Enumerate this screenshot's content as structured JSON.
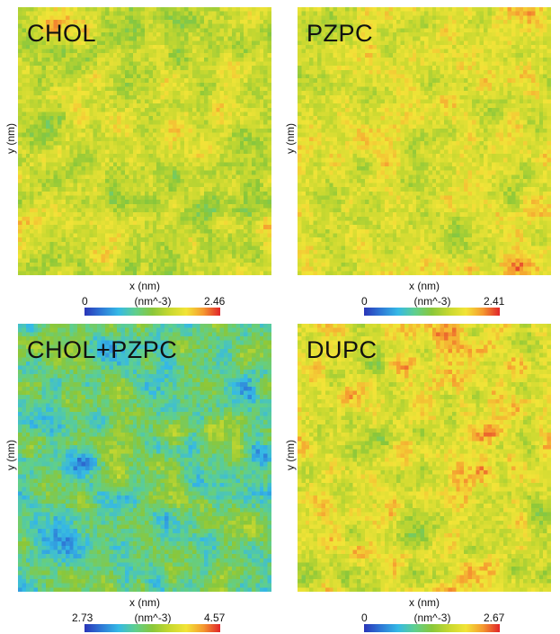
{
  "colormap": [
    "#2a35b8",
    "#2e79d6",
    "#35b9e6",
    "#5fcf8e",
    "#8ac73a",
    "#c7d830",
    "#f2e437",
    "#f59a30",
    "#e0242a"
  ],
  "chart_data": [
    {
      "type": "heatmap",
      "title": "CHOL",
      "xlabel": "x (nm)",
      "ylabel": "y (nm)",
      "colorbar": {
        "min": "0",
        "max": "2.46",
        "unit": "(nm^-3)",
        "range": [
          0,
          2.46
        ]
      },
      "typical_value": 1.6,
      "grid": "64x64"
    },
    {
      "type": "heatmap",
      "title": "PZPC",
      "xlabel": "x (nm)",
      "ylabel": "y (nm)",
      "colorbar": {
        "min": "0",
        "max": "2.41",
        "unit": "(nm^-3)",
        "range": [
          0,
          2.41
        ]
      },
      "typical_value": 1.65,
      "grid": "64x64"
    },
    {
      "type": "heatmap",
      "title": "CHOL+PZPC",
      "xlabel": "x (nm)",
      "ylabel": "y (nm)",
      "colorbar": {
        "min": "2.73",
        "max": "4.57",
        "unit": "(nm^-3)",
        "range": [
          2.73,
          4.57
        ]
      },
      "typical_value": 3.45,
      "grid": "64x64"
    },
    {
      "type": "heatmap",
      "title": "DUPC",
      "xlabel": "x (nm)",
      "ylabel": "y (nm)",
      "colorbar": {
        "min": "0",
        "max": "2.67",
        "unit": "(nm^-3)",
        "range": [
          0,
          2.67
        ]
      },
      "typical_value": 1.85,
      "grid": "64x64"
    }
  ]
}
